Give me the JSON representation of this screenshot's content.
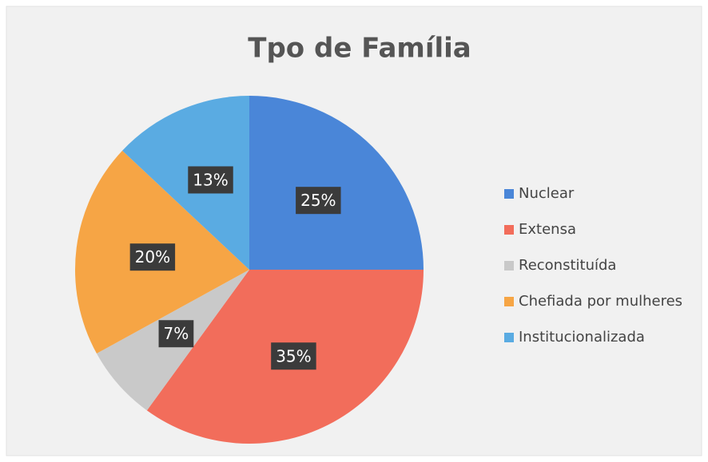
{
  "chart_data": {
    "type": "pie",
    "title": "Tpo de Família",
    "categories": [
      "Nuclear",
      "Extensa",
      "Reconstituída",
      "Chefiada por mulheres",
      "Institucionalizada"
    ],
    "values": [
      25,
      35,
      7,
      20,
      13
    ],
    "value_labels": [
      "25%",
      "35%",
      "7%",
      "20%",
      "13%"
    ],
    "colors": [
      "#4a86d8",
      "#f26d5b",
      "#c9c9c9",
      "#f6a545",
      "#5aabe2"
    ],
    "legend": "right"
  }
}
